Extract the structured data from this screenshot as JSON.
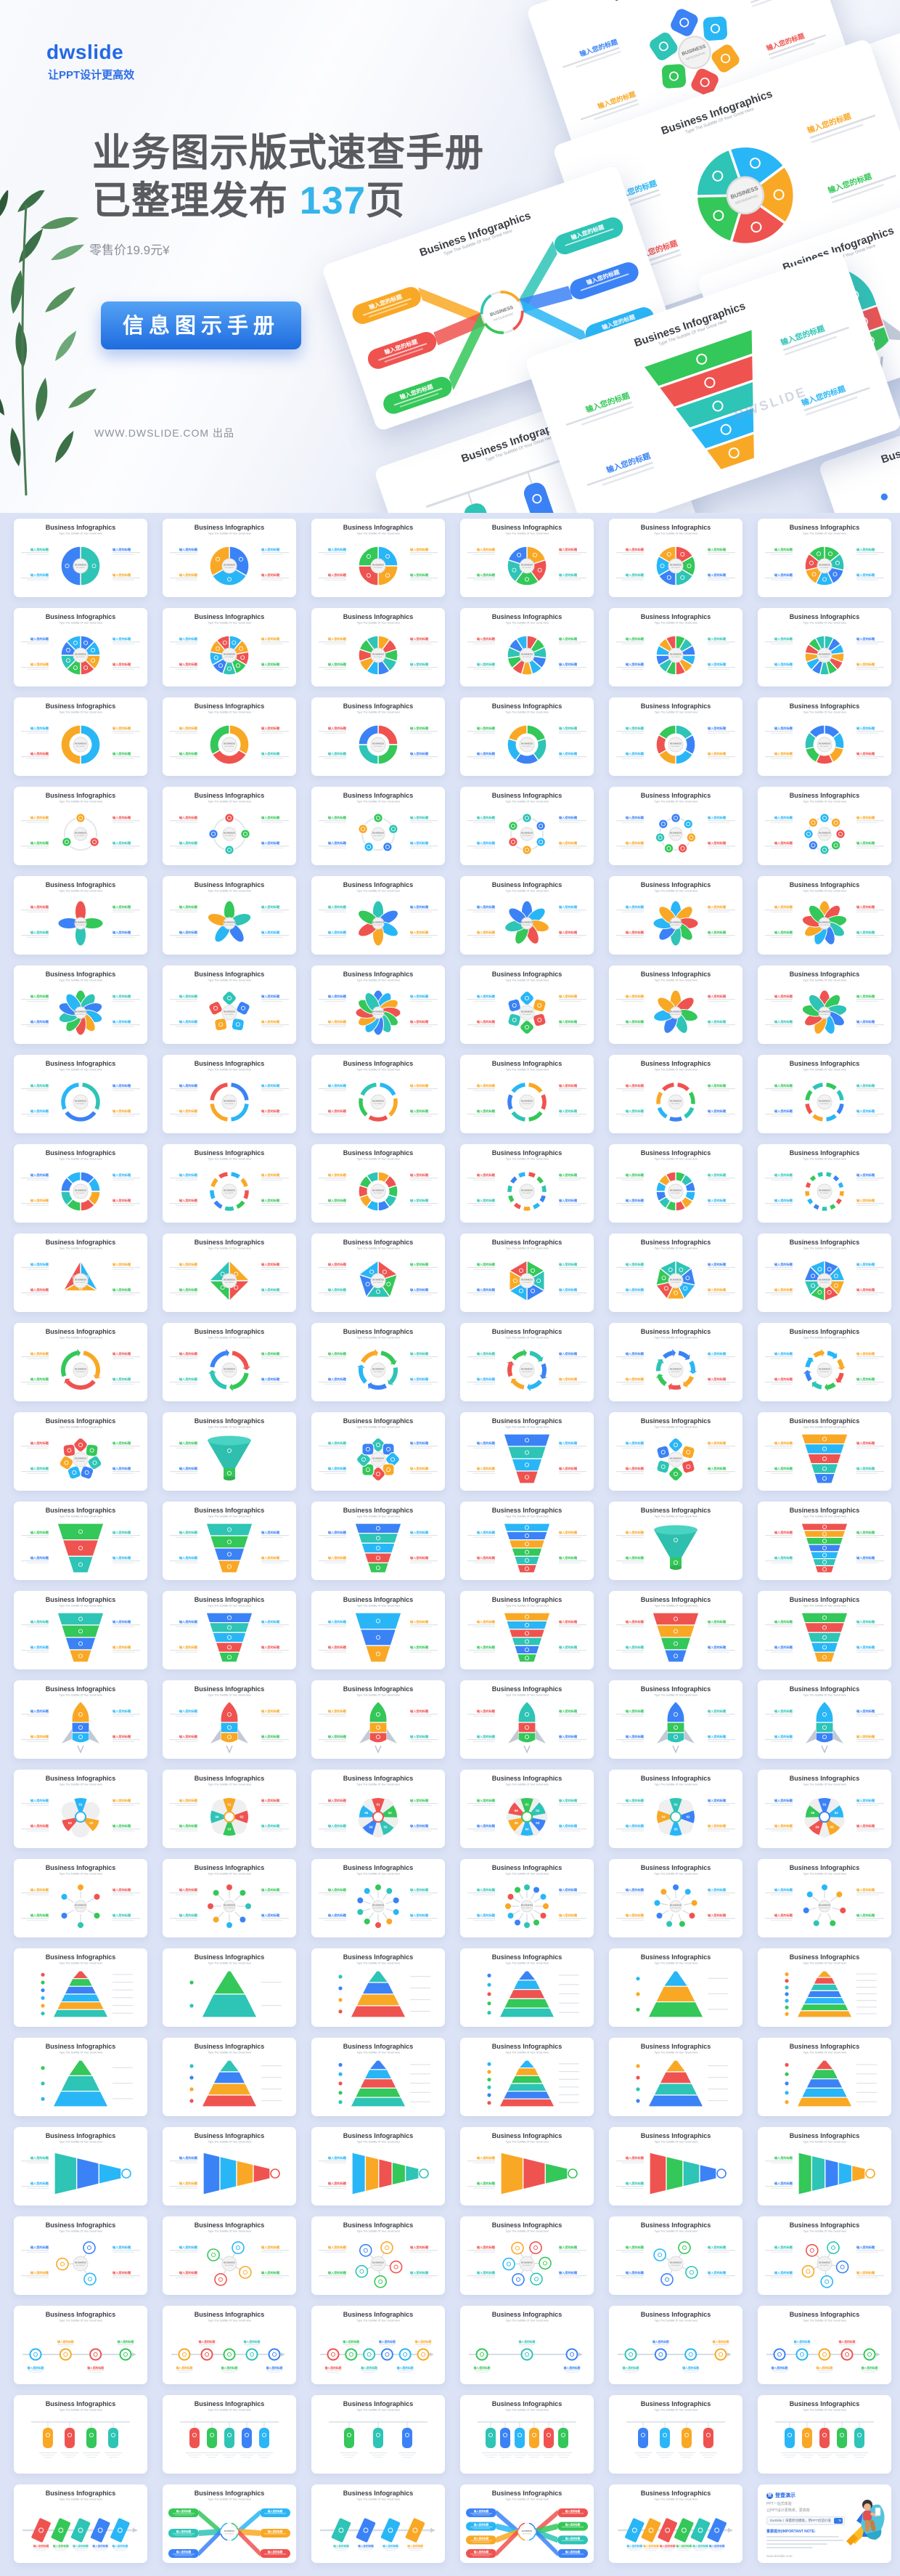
{
  "page": {
    "background": "#dce3f6"
  },
  "hero": {
    "logo": "dwslide",
    "tagline": "让PPT设计更高效",
    "title_line1": "业务图示版式速查手册",
    "title_line2_prefix": "已整理发布 ",
    "title_line2_highlight": "137",
    "title_line2_suffix": "页",
    "price": "零售价19.9元¥",
    "cta_label": "信息图示手册",
    "site_line": "WWW.DWSLIDE.COM 出品",
    "watermark": "DWSLIDE",
    "accent_color": "#2f6ee6",
    "highlight_color": "#35b5ea"
  },
  "slide": {
    "title": "Business Infographics",
    "subtitle": "Type The Subtitle Of Your Great Here",
    "label": "输入您的标题",
    "body_stub": "This is a sample text. You simply add your own text and description here.",
    "center_top": "BUSINESS",
    "center_bottom": "INFOGRAPHIC"
  },
  "palette": [
    "#2ec4b6",
    "#3b82f6",
    "#29b6f6",
    "#f9a825",
    "#ef5350",
    "#34c759"
  ],
  "hero_slides": [
    {
      "t": "blank",
      "n": 0
    },
    {
      "t": "gearflower",
      "n": 6
    },
    {
      "t": "pie",
      "n": 5
    },
    {
      "t": "ribbon",
      "n": 3
    },
    {
      "t": "rocket",
      "n": 3
    },
    {
      "t": "funnel",
      "n": 5
    },
    {
      "t": "flags",
      "n": 3
    },
    {
      "t": "pyramid",
      "n": 3
    }
  ],
  "grid": {
    "rows": [
      [
        {
          "t": "pie",
          "n": 2
        },
        {
          "t": "pie",
          "n": 3
        },
        {
          "t": "pie",
          "n": 4
        },
        {
          "t": "pie",
          "n": 5
        },
        {
          "t": "pie",
          "n": 6
        },
        {
          "t": "pie",
          "n": 7
        }
      ],
      [
        {
          "t": "pie",
          "n": 8
        },
        {
          "t": "pie",
          "n": 9
        },
        {
          "t": "pie",
          "n": 10
        },
        {
          "t": "pie",
          "n": 11
        },
        {
          "t": "pie",
          "n": 12
        },
        {
          "t": "pie",
          "n": 13
        }
      ],
      [
        {
          "t": "donut",
          "n": 2
        },
        {
          "t": "donut",
          "n": 3
        },
        {
          "t": "donut",
          "n": 4
        },
        {
          "t": "donut",
          "n": 5
        },
        {
          "t": "donut",
          "n": 6
        },
        {
          "t": "donut",
          "n": 7
        }
      ],
      [
        {
          "t": "orbit",
          "n": 3
        },
        {
          "t": "orbit",
          "n": 4
        },
        {
          "t": "orbit",
          "n": 5
        },
        {
          "t": "orbit",
          "n": 6
        },
        {
          "t": "orbit",
          "n": 7
        },
        {
          "t": "orbit",
          "n": 8
        }
      ],
      [
        {
          "t": "flower",
          "n": 4
        },
        {
          "t": "flower",
          "n": 5
        },
        {
          "t": "flower",
          "n": 6
        },
        {
          "t": "flower",
          "n": 7
        },
        {
          "t": "flower",
          "n": 8
        },
        {
          "t": "flower",
          "n": 9
        }
      ],
      [
        {
          "t": "flower",
          "n": 10
        },
        {
          "t": "gearflower",
          "n": 5
        },
        {
          "t": "flower",
          "n": 12
        },
        {
          "t": "gearflower",
          "n": 6
        },
        {
          "t": "flower",
          "n": 7
        },
        {
          "t": "flower",
          "n": 9
        }
      ],
      [
        {
          "t": "ring",
          "n": 3
        },
        {
          "t": "ring",
          "n": 4
        },
        {
          "t": "ring",
          "n": 5
        },
        {
          "t": "ring",
          "n": 6
        },
        {
          "t": "ring",
          "n": 7
        },
        {
          "t": "ring",
          "n": 8
        }
      ],
      [
        {
          "t": "donut",
          "n": 8
        },
        {
          "t": "ring",
          "n": 9
        },
        {
          "t": "donut",
          "n": 10
        },
        {
          "t": "ring",
          "n": 11
        },
        {
          "t": "donut",
          "n": 12
        },
        {
          "t": "ring",
          "n": 13
        }
      ],
      [
        {
          "t": "poly",
          "n": 3
        },
        {
          "t": "poly",
          "n": 4
        },
        {
          "t": "poly",
          "n": 5
        },
        {
          "t": "poly",
          "n": 6
        },
        {
          "t": "poly",
          "n": 7
        },
        {
          "t": "poly",
          "n": 8
        }
      ],
      [
        {
          "t": "cycle",
          "n": 3
        },
        {
          "t": "cycle",
          "n": 4
        },
        {
          "t": "cycle",
          "n": 5
        },
        {
          "t": "cycle",
          "n": 6
        },
        {
          "t": "cycle",
          "n": 7
        },
        {
          "t": "cycle",
          "n": 8
        }
      ],
      [
        {
          "t": "gearflower",
          "n": 7
        },
        {
          "t": "bigfunnel",
          "n": 1
        },
        {
          "t": "gearflower",
          "n": 8
        },
        {
          "t": "funnel",
          "n": 4
        },
        {
          "t": "gearflower",
          "n": 6
        },
        {
          "t": "funnel",
          "n": 5
        }
      ],
      [
        {
          "t": "funnel",
          "n": 3
        },
        {
          "t": "funnel",
          "n": 4
        },
        {
          "t": "funnel",
          "n": 5
        },
        {
          "t": "funnel",
          "n": 6
        },
        {
          "t": "bigfunnel",
          "n": 1
        },
        {
          "t": "funnel",
          "n": 7
        }
      ],
      [
        {
          "t": "funnel",
          "n": 4
        },
        {
          "t": "funnel",
          "n": 5
        },
        {
          "t": "funnel",
          "n": 3
        },
        {
          "t": "funnel",
          "n": 6
        },
        {
          "t": "funnel",
          "n": 4
        },
        {
          "t": "funnel",
          "n": 5
        }
      ],
      [
        {
          "t": "rocket",
          "n": 3
        },
        {
          "t": "rocket",
          "n": 3
        },
        {
          "t": "rocket",
          "n": 3
        },
        {
          "t": "rocket",
          "n": 3
        },
        {
          "t": "rocket",
          "n": 3
        },
        {
          "t": "rocket",
          "n": 3
        }
      ],
      [
        {
          "t": "pinwheel",
          "n": 3
        },
        {
          "t": "pinwheel",
          "n": 4
        },
        {
          "t": "pinwheel",
          "n": 5
        },
        {
          "t": "pinwheel",
          "n": 6
        },
        {
          "t": "pinwheel",
          "n": 4
        },
        {
          "t": "pinwheel",
          "n": 5
        }
      ],
      [
        {
          "t": "radial",
          "n": 6
        },
        {
          "t": "radial",
          "n": 8
        },
        {
          "t": "radial",
          "n": 10
        },
        {
          "t": "radial",
          "n": 12
        },
        {
          "t": "radial",
          "n": 9
        },
        {
          "t": "radial",
          "n": 7
        }
      ],
      [
        {
          "t": "pyramid",
          "n": 6
        },
        {
          "t": "pyramid",
          "n": 2
        },
        {
          "t": "pyramid",
          "n": 4
        },
        {
          "t": "pyramid",
          "n": 5
        },
        {
          "t": "pyramid",
          "n": 3
        },
        {
          "t": "pyramid",
          "n": 7
        }
      ],
      [
        {
          "t": "pyramid",
          "n": 3
        },
        {
          "t": "pyramid",
          "n": 4
        },
        {
          "t": "pyramid",
          "n": 5
        },
        {
          "t": "pyramid",
          "n": 6
        },
        {
          "t": "pyramid",
          "n": 4
        },
        {
          "t": "pyramid",
          "n": 5
        }
      ],
      [
        {
          "t": "hfunnel",
          "n": 3
        },
        {
          "t": "hfunnel",
          "n": 4
        },
        {
          "t": "hfunnel",
          "n": 5
        },
        {
          "t": "hfunnel",
          "n": 3
        },
        {
          "t": "hfunnel",
          "n": 4
        },
        {
          "t": "hfunnel",
          "n": 5
        }
      ],
      [
        {
          "t": "hub",
          "n": 3
        },
        {
          "t": "hub",
          "n": 4
        },
        {
          "t": "hub",
          "n": 5
        },
        {
          "t": "hub",
          "n": 6
        },
        {
          "t": "hub",
          "n": 4
        },
        {
          "t": "hub",
          "n": 5
        }
      ],
      [
        {
          "t": "timeline",
          "n": 4
        },
        {
          "t": "timeline",
          "n": 5
        },
        {
          "t": "timeline",
          "n": 6
        },
        {
          "t": "timeline",
          "n": 3
        },
        {
          "t": "timeline",
          "n": 4
        },
        {
          "t": "timeline",
          "n": 5
        }
      ],
      [
        {
          "t": "flags",
          "n": 4
        },
        {
          "t": "flags",
          "n": 5
        },
        {
          "t": "flags",
          "n": 3
        },
        {
          "t": "flags",
          "n": 6
        },
        {
          "t": "flags",
          "n": 4
        },
        {
          "t": "flags",
          "n": 5
        }
      ],
      [
        {
          "t": "tilted",
          "n": 5
        },
        {
          "t": "ribbon",
          "n": 3
        },
        {
          "t": "tilted",
          "n": 4
        },
        {
          "t": "ribbon",
          "n": 4
        },
        {
          "t": "tilted",
          "n": 6
        },
        {
          "t": "brand",
          "n": 0
        }
      ]
    ]
  },
  "brand_card": {
    "logo_text": "登壹演示",
    "logo_glyph": "登",
    "line1": "PPT一站式体验",
    "line2": "让PPT设计更简单，更高效",
    "search_text": "DwSlide丨海量原创模板，用PPT创造价值",
    "search_icon": "🔍",
    "note_title": "重要提示|IMPORTANT NOTE:",
    "url": "www.dwslide.com"
  }
}
